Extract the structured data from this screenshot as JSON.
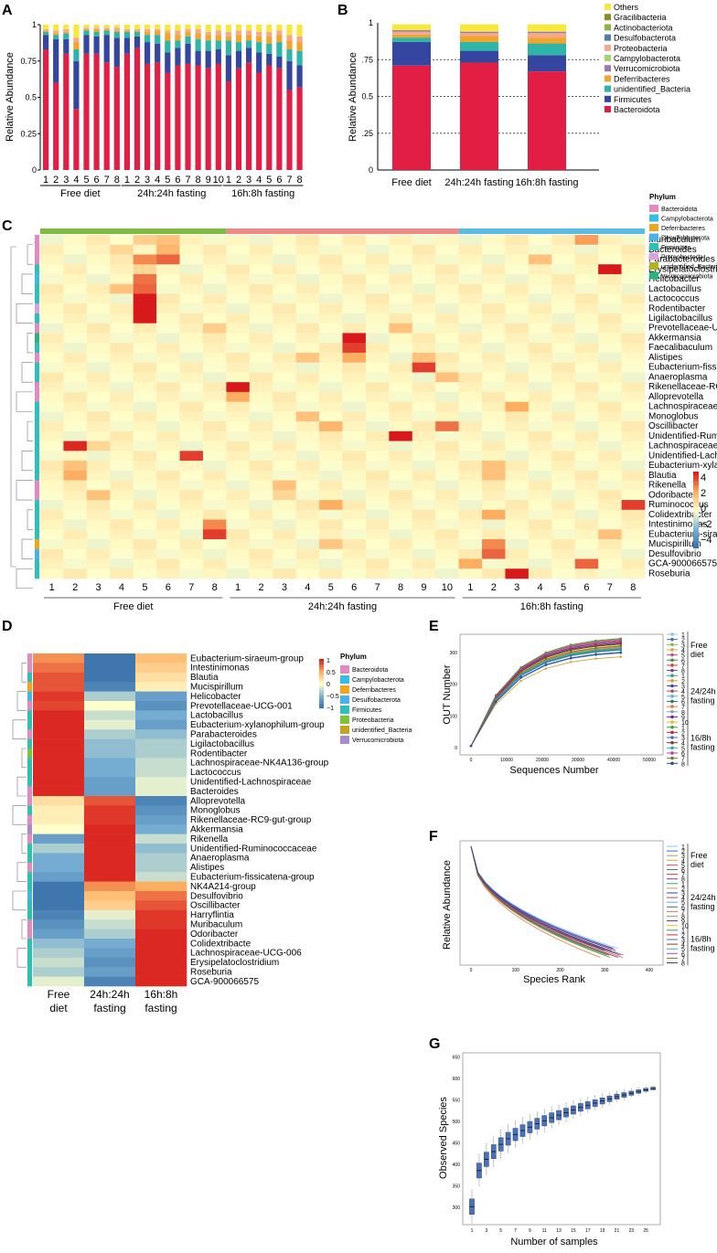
{
  "panel_letters": {
    "a": "A",
    "b": "B",
    "c": "C",
    "d": "D",
    "e": "E",
    "f": "F",
    "g": "G"
  },
  "colors": {
    "Others": "#F7E93A",
    "Gracilibacteria": "#8C8A2A",
    "Actinobacteriota": "#8DB33C",
    "Desulfobacterota": "#4E7FA8",
    "Proteobacteria": "#F4A98C",
    "Campylobacterota": "#A7D36E",
    "Verrucomicrobiota": "#9A78B8",
    "Deferribacteres": "#F3A42A",
    "unidentified_Bacteria": "#2FB5A7",
    "Firmicutes": "#3446A0",
    "Bacteroidota": "#E31E45"
  },
  "groups": [
    "Free diet",
    "24h:24h fasting",
    "16h:8h fasting"
  ],
  "chart_data": [
    {
      "id": "A",
      "type": "bar",
      "stacked": true,
      "ylabel": "Relative Abundance",
      "yticks": [
        "0",
        "0.25",
        "0.5",
        "0.75",
        "1"
      ],
      "ylim": [
        0,
        1
      ],
      "tick_labels": [
        "1",
        "2",
        "3",
        "4",
        "5",
        "6",
        "7",
        "8",
        "1",
        "2",
        "3",
        "4",
        "5",
        "6",
        "7",
        "8",
        "9",
        "10",
        "1",
        "2",
        "3",
        "4",
        "5",
        "6",
        "7",
        "8"
      ],
      "group_labels": [
        "Free diet",
        "24h:24h fasting",
        "16h:8h fasting"
      ],
      "series_order": [
        "Bacteroidota",
        "Firmicutes",
        "unidentified_Bacteria",
        "Deferribacteres",
        "Proteobacteria",
        "Others"
      ],
      "samples": [
        [
          0.83,
          0.1,
          0.02,
          0.01,
          0.01,
          0.03
        ],
        [
          0.6,
          0.3,
          0.03,
          0.01,
          0.02,
          0.04
        ],
        [
          0.8,
          0.1,
          0.04,
          0.01,
          0.02,
          0.03
        ],
        [
          0.42,
          0.33,
          0.08,
          0.05,
          0.03,
          0.09
        ],
        [
          0.8,
          0.13,
          0.03,
          0.01,
          0.01,
          0.02
        ],
        [
          0.8,
          0.12,
          0.03,
          0.02,
          0.01,
          0.02
        ],
        [
          0.74,
          0.19,
          0.03,
          0.01,
          0.01,
          0.02
        ],
        [
          0.71,
          0.2,
          0.04,
          0.01,
          0.02,
          0.02
        ],
        [
          0.8,
          0.11,
          0.04,
          0.01,
          0.01,
          0.03
        ],
        [
          0.84,
          0.08,
          0.03,
          0.01,
          0.01,
          0.03
        ],
        [
          0.73,
          0.15,
          0.05,
          0.02,
          0.02,
          0.03
        ],
        [
          0.74,
          0.13,
          0.06,
          0.03,
          0.01,
          0.03
        ],
        [
          0.67,
          0.14,
          0.08,
          0.05,
          0.02,
          0.04
        ],
        [
          0.72,
          0.12,
          0.05,
          0.04,
          0.03,
          0.04
        ],
        [
          0.73,
          0.14,
          0.05,
          0.03,
          0.02,
          0.03
        ],
        [
          0.72,
          0.1,
          0.08,
          0.04,
          0.03,
          0.03
        ],
        [
          0.7,
          0.12,
          0.07,
          0.04,
          0.02,
          0.05
        ],
        [
          0.73,
          0.1,
          0.06,
          0.04,
          0.03,
          0.04
        ],
        [
          0.61,
          0.18,
          0.1,
          0.03,
          0.03,
          0.05
        ],
        [
          0.7,
          0.12,
          0.06,
          0.05,
          0.03,
          0.04
        ],
        [
          0.74,
          0.1,
          0.05,
          0.04,
          0.03,
          0.04
        ],
        [
          0.67,
          0.14,
          0.07,
          0.04,
          0.03,
          0.05
        ],
        [
          0.72,
          0.08,
          0.07,
          0.05,
          0.03,
          0.05
        ],
        [
          0.7,
          0.08,
          0.1,
          0.05,
          0.03,
          0.04
        ],
        [
          0.55,
          0.2,
          0.08,
          0.06,
          0.04,
          0.07
        ],
        [
          0.57,
          0.15,
          0.1,
          0.06,
          0.04,
          0.08
        ]
      ]
    },
    {
      "id": "B",
      "type": "bar",
      "stacked": true,
      "ylabel": "Relative Abundance",
      "yticks": [
        "0",
        ".25",
        "0.5",
        ".75",
        "1"
      ],
      "ylim": [
        0,
        1
      ],
      "categories": [
        "Free diet",
        "24h:24h fasting",
        "16h:8h fasting"
      ],
      "legend": [
        "Others",
        "Gracilibacteria",
        "Actinobacteriota",
        "Desulfobacterota",
        "Proteobacteria",
        "Campylobacterota",
        "Verrucomicrobiota",
        "Deferribacteres",
        "unidentified_Bacteria",
        "Firmicutes",
        "Bacteroidota"
      ],
      "series": [
        {
          "name": "Bacteroidota",
          "values": [
            0.71,
            0.73,
            0.67
          ]
        },
        {
          "name": "Firmicutes",
          "values": [
            0.16,
            0.08,
            0.11
          ]
        },
        {
          "name": "unidentified_Bacteria",
          "values": [
            0.03,
            0.06,
            0.08
          ]
        },
        {
          "name": "Deferribacteres",
          "values": [
            0.02,
            0.04,
            0.04
          ]
        },
        {
          "name": "Proteobacteria",
          "values": [
            0.02,
            0.02,
            0.03
          ]
        },
        {
          "name": "Verrucomicrobiota",
          "values": [
            0.01,
            0.01,
            0.01
          ]
        },
        {
          "name": "Others",
          "values": [
            0.04,
            0.05,
            0.05
          ]
        }
      ]
    },
    {
      "id": "C",
      "type": "heatmap",
      "legend_title": "Phylum",
      "phyla": [
        "Bacteroidota",
        "Campylobacterota",
        "Deferribacteres",
        "Desulfobacterota",
        "Firmicutes",
        "Proteobacteria",
        "unidentified_Bacteria",
        "Verrucomicrobiota"
      ],
      "phylum_colors": [
        "#E38BC0",
        "#37BCE3",
        "#F0A51E",
        "#4AB1E8",
        "#2CC0B6",
        "#D6A4D8",
        "#B5B220",
        "#2AB37A"
      ],
      "colorbar_ticks": [
        "4",
        "2",
        "0",
        "−2",
        "−4"
      ],
      "column_labels": [
        "1",
        "2",
        "3",
        "4",
        "5",
        "6",
        "7",
        "8",
        "1",
        "2",
        "3",
        "4",
        "5",
        "6",
        "7",
        "8",
        "9",
        "10",
        "1",
        "2",
        "3",
        "4",
        "5",
        "6",
        "7",
        "8"
      ],
      "group_labels": [
        "Free diet",
        "24h:24h fasting",
        "16h:8h fasting"
      ],
      "rows": [
        "Muribaculum",
        "Bacteroides",
        "Parabacteroides",
        "Erysipelatoclostridium",
        "Helicobacter",
        "Lactobacillus",
        "Lactococcus",
        "Rodentibacter",
        "Ligilactobacillus",
        "Prevotellaceae-UCG-001",
        "Akkermansia",
        "Faecalibaculum",
        "Alistipes",
        "Eubacterium-fissicatena-group",
        "Anaeroplasma",
        "Rikenellaceae-RC9-gut-group",
        "Alloprevotella",
        "Lachnospiraceae-UCG-006",
        "Monoglobus",
        "Oscillibacter",
        "Unidentified-Ruminococcaceae",
        "Lachnospiraceae-NK4A136-group",
        "Unidentified-Lachnospiraceae",
        "Eubacterium-xylanophilum-group",
        "Blautia",
        "Rikenella",
        "Odoribacter",
        "Ruminococcus",
        "Colidextribacter",
        "Intestinimonas",
        "Eubacterium-siraeum-grou",
        "Mucispirillum",
        "Desulfovibrio",
        "GCA-900066575",
        "Roseburia"
      ],
      "row_phylum": [
        0,
        0,
        0,
        4,
        1,
        4,
        4,
        5,
        4,
        0,
        7,
        4,
        0,
        4,
        4,
        0,
        0,
        4,
        4,
        4,
        4,
        4,
        4,
        4,
        4,
        0,
        0,
        4,
        4,
        4,
        4,
        2,
        3,
        4,
        4
      ],
      "highlights": [
        [
          0,
          4,
          1.2
        ],
        [
          0,
          5,
          1.5
        ],
        [
          0,
          23,
          2.2
        ],
        [
          1,
          3,
          1
        ],
        [
          1,
          5,
          1.8
        ],
        [
          2,
          4,
          2.5
        ],
        [
          2,
          5,
          3
        ],
        [
          2,
          21,
          1.5
        ],
        [
          3,
          4,
          1
        ],
        [
          3,
          24,
          4
        ],
        [
          4,
          4,
          2.8
        ],
        [
          5,
          3,
          1.5
        ],
        [
          5,
          4,
          3
        ],
        [
          6,
          4,
          4
        ],
        [
          7,
          4,
          4
        ],
        [
          8,
          4,
          4
        ],
        [
          9,
          7,
          1.2
        ],
        [
          9,
          15,
          1.5
        ],
        [
          10,
          13,
          4
        ],
        [
          11,
          13,
          3.5
        ],
        [
          12,
          11,
          1.4
        ],
        [
          12,
          13,
          2
        ],
        [
          12,
          16,
          1.5
        ],
        [
          13,
          16,
          3.5
        ],
        [
          14,
          17,
          1.5
        ],
        [
          15,
          8,
          4
        ],
        [
          16,
          8,
          2
        ],
        [
          17,
          20,
          2
        ],
        [
          18,
          11,
          1.5
        ],
        [
          19,
          12,
          1.8
        ],
        [
          19,
          17,
          2.8
        ],
        [
          20,
          15,
          4
        ],
        [
          21,
          1,
          3.8
        ],
        [
          21,
          2,
          1
        ],
        [
          22,
          6,
          3.5
        ],
        [
          23,
          1,
          1.5
        ],
        [
          23,
          19,
          1.5
        ],
        [
          24,
          1,
          2
        ],
        [
          24,
          19,
          1.5
        ],
        [
          25,
          10,
          1.5
        ],
        [
          26,
          2,
          1.5
        ],
        [
          26,
          10,
          1
        ],
        [
          27,
          12,
          2
        ],
        [
          27,
          25,
          3.5
        ],
        [
          28,
          19,
          2
        ],
        [
          29,
          7,
          2.5
        ],
        [
          30,
          7,
          3.5
        ],
        [
          30,
          24,
          1.5
        ],
        [
          31,
          12,
          1.4
        ],
        [
          31,
          19,
          2.5
        ],
        [
          32,
          19,
          3
        ],
        [
          33,
          18,
          2
        ],
        [
          33,
          23,
          3
        ],
        [
          34,
          20,
          4
        ]
      ]
    },
    {
      "id": "D",
      "type": "heatmap",
      "legend_title": "Phylum",
      "phyla": [
        "Bacteroidota",
        "Campylobacterota",
        "Deferribacteres",
        "Desulfobacterota",
        "Firmicutes",
        "Proteobacteria",
        "unidentified_Bacteria",
        "Verrucomicrobiota"
      ],
      "phylum_colors": [
        "#E38BC0",
        "#37BCE3",
        "#F0A51E",
        "#4AB1E8",
        "#2CC0B6",
        "#7CC23A",
        "#C2A421",
        "#A88BCB"
      ],
      "colorbar_ticks": [
        "1",
        "0.5",
        "0",
        "−0.5",
        "−1"
      ],
      "columns": [
        "Free diet",
        "24h:24h fasting",
        "16h:8h fasting"
      ],
      "rows": [
        "Eubacterium-siraeum-group",
        "Intestinimonas",
        "Blautia",
        "Mucispirillum",
        "Helicobacter",
        "Prevotellaceae-UCG-001",
        "Lactobacillus",
        "Eubacterium-xylanophilum-group",
        "Parabacteroides",
        "Ligilactobacillus",
        "Rodentibacter",
        "Lachnospiraceae-NK4A136-group",
        "Lactococcus",
        "Unidentified-Lachnospiraceae",
        "Bacteroides",
        "Alloprevotella",
        "Monoglobus",
        "Rikenellaceae-RC9-gut-group",
        "Akkermansia",
        "Rikenella",
        "Unidentified-Ruminococcaceae",
        "Anaeroplasma",
        "Alistipes",
        "Eubacterium-fissicatena-group",
        "NK4A214-group",
        "Desulfovibrio",
        "Oscillibacter",
        "Harryflintia",
        "Muribaculum",
        "Odoribacter",
        "Colidextribacte",
        "Lachnospiraceae-UCG-006",
        "Erysipelatoclostridium",
        "Roseburia",
        "GCA-900066575"
      ],
      "values": [
        [
          0.6,
          -0.9,
          0.4
        ],
        [
          0.7,
          -0.9,
          0.3
        ],
        [
          0.8,
          -0.9,
          0.2
        ],
        [
          0.8,
          -0.8,
          0.1
        ],
        [
          0.9,
          -0.3,
          -0.6
        ],
        [
          0.85,
          0.0,
          -0.7
        ],
        [
          0.95,
          -0.2,
          -0.5
        ],
        [
          0.95,
          -0.1,
          -0.6
        ],
        [
          0.95,
          -0.3,
          -0.4
        ],
        [
          0.95,
          -0.4,
          -0.3
        ],
        [
          0.95,
          -0.4,
          -0.3
        ],
        [
          0.95,
          -0.5,
          -0.2
        ],
        [
          0.95,
          -0.5,
          -0.2
        ],
        [
          0.95,
          -0.6,
          -0.1
        ],
        [
          0.95,
          -0.6,
          -0.1
        ],
        [
          0.2,
          0.8,
          -0.8
        ],
        [
          0.1,
          0.9,
          -0.7
        ],
        [
          0.1,
          0.9,
          -0.6
        ],
        [
          0.0,
          0.95,
          -0.5
        ],
        [
          -0.6,
          0.95,
          -0.2
        ],
        [
          -0.3,
          0.95,
          -0.4
        ],
        [
          -0.5,
          0.95,
          -0.3
        ],
        [
          -0.5,
          0.95,
          -0.3
        ],
        [
          -0.6,
          0.95,
          -0.2
        ],
        [
          -0.9,
          0.6,
          0.5
        ],
        [
          -0.9,
          0.4,
          0.7
        ],
        [
          -0.9,
          0.3,
          0.8
        ],
        [
          -0.8,
          -0.1,
          0.9
        ],
        [
          -0.7,
          -0.2,
          0.9
        ],
        [
          -0.6,
          -0.3,
          0.95
        ],
        [
          -0.4,
          -0.5,
          0.95
        ],
        [
          -0.3,
          -0.6,
          0.95
        ],
        [
          -0.2,
          -0.7,
          0.95
        ],
        [
          -0.3,
          -0.6,
          0.95
        ],
        [
          -0.1,
          -0.8,
          0.95
        ]
      ]
    },
    {
      "id": "E",
      "type": "line",
      "xlabel": "Sequences Number",
      "ylabel": "OUT Number",
      "xticks": [
        "0",
        "10000",
        "20000",
        "30000",
        "40000",
        "50000"
      ],
      "yticks": [
        "0",
        "100",
        "200",
        "300"
      ],
      "x": [
        0,
        7000,
        14000,
        21000,
        28000,
        35000,
        42000
      ],
      "series_finals": [
        306,
        298,
        335,
        318,
        343,
        310,
        340,
        326,
        312,
        286,
        330,
        320,
        300,
        328,
        316,
        336,
        334,
        322,
        344,
        331,
        308,
        326,
        314,
        338,
        320,
        300
      ],
      "legend_labels": [
        "1",
        "2",
        "3",
        "4",
        "5",
        "6",
        "7",
        "8",
        "1",
        "2",
        "3",
        "4",
        "5",
        "6",
        "7",
        "8",
        "9",
        "10",
        "1",
        "2",
        "3",
        "4",
        "5",
        "6",
        "7",
        "8"
      ],
      "group_labels": [
        "Free diet",
        "24/24h fasting",
        "16/8h fasting"
      ]
    },
    {
      "id": "F",
      "type": "line",
      "xlabel": "Species Rank",
      "ylabel": "Relative Abundance",
      "xticks": [
        "0",
        "100",
        "200",
        "300",
        "400"
      ],
      "series_ends": [
        330,
        300,
        320,
        310,
        340,
        295,
        315,
        325,
        305,
        330,
        320,
        310,
        300,
        335,
        290,
        315,
        325,
        300,
        310,
        330,
        318,
        306,
        325,
        342,
        312,
        298
      ],
      "legend_labels": [
        "1",
        "2",
        "3",
        "4",
        "5",
        "6",
        "7",
        "8",
        "1",
        "2",
        "3",
        "4",
        "5",
        "6",
        "7",
        "8",
        "9",
        "10",
        "1",
        "2",
        "3",
        "4",
        "5",
        "6",
        "7",
        "8"
      ],
      "group_labels": [
        "Free diet",
        "24/24h fasting",
        "16/8h fasting"
      ]
    },
    {
      "id": "G",
      "type": "box",
      "xlabel": "Number of samples",
      "ylabel": "Observed Species",
      "yticks": [
        "300",
        "350",
        "400",
        "450",
        "500",
        "550",
        "600",
        "650"
      ],
      "ylim": [
        260,
        660
      ],
      "xtick_labels": [
        "1",
        "3",
        "5",
        "7",
        "9",
        "11",
        "13",
        "15",
        "17",
        "19",
        "21",
        "23",
        "25"
      ],
      "medians": [
        302,
        386,
        412,
        430,
        447,
        460,
        470,
        479,
        487,
        495,
        502,
        509,
        515,
        521,
        527,
        533,
        538,
        543,
        548,
        553,
        558,
        562,
        566,
        570,
        574,
        577
      ]
    }
  ]
}
